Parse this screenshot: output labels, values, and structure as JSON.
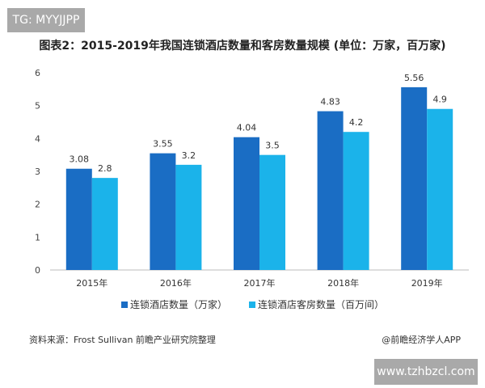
{
  "watermark_top": "TG: MYYJJPP",
  "watermark_bottom": "www.tzhbzcl.com",
  "source": "资料来源：Frost Sullivan 前瞻产业研究院整理",
  "credit": "@前瞻经济学人APP",
  "chart_data": {
    "type": "bar",
    "title": "图表2：2015-2019年我国连锁酒店数量和客房数量规模 (单位：万家，百万家)",
    "categories": [
      "2015年",
      "2016年",
      "2017年",
      "2018年",
      "2019年"
    ],
    "series": [
      {
        "name": "连锁酒店数量（万家）",
        "values": [
          3.08,
          3.55,
          4.04,
          4.83,
          5.56
        ],
        "color": "#1a6dc4"
      },
      {
        "name": "连锁酒店客房数量（百万间）",
        "values": [
          2.8,
          3.2,
          3.5,
          4.2,
          4.9
        ],
        "color": "#1bb3ea"
      }
    ],
    "ylim": [
      0,
      6
    ],
    "yticks": [
      "0",
      "1",
      "2",
      "3",
      "4",
      "5",
      "6"
    ],
    "grid": false,
    "legend": "bottom",
    "data_labels": true
  }
}
